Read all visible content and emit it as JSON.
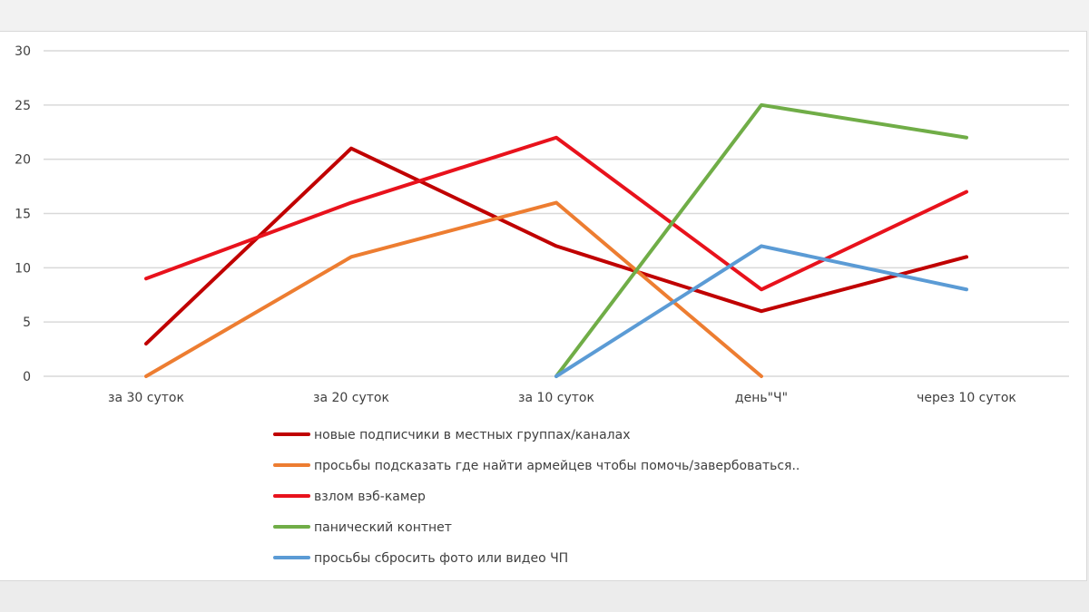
{
  "chart_data": {
    "type": "line",
    "title": "",
    "xlabel": "",
    "ylabel": "",
    "ylim": [
      0,
      30
    ],
    "yticks": [
      0,
      5,
      10,
      15,
      20,
      25,
      30
    ],
    "grid": true,
    "legend_position": "bottom",
    "categories": [
      "за 30 суток",
      "за 20 суток",
      "за 10 суток",
      "день\"Ч\"",
      "через 10 суток"
    ],
    "series": [
      {
        "name": "новые подписчики в местных группах/каналах",
        "color": "#c00000",
        "values": [
          3,
          21,
          12,
          6,
          11
        ]
      },
      {
        "name": "просьбы подсказать где найти армейцев чтобы помочь/завербоваться..",
        "color": "#ed7d31",
        "values": [
          0,
          11,
          16,
          0,
          null
        ]
      },
      {
        "name": "взлом вэб-камер",
        "color": "#e8121c",
        "values": [
          9,
          16,
          22,
          8,
          17
        ]
      },
      {
        "name": "панический контнет",
        "color": "#70ad47",
        "values": [
          null,
          null,
          0,
          25,
          22
        ]
      },
      {
        "name": "просьбы сбросить фото или видео ЧП",
        "color": "#5b9bd5",
        "values": [
          null,
          null,
          0,
          12,
          8
        ]
      }
    ]
  }
}
